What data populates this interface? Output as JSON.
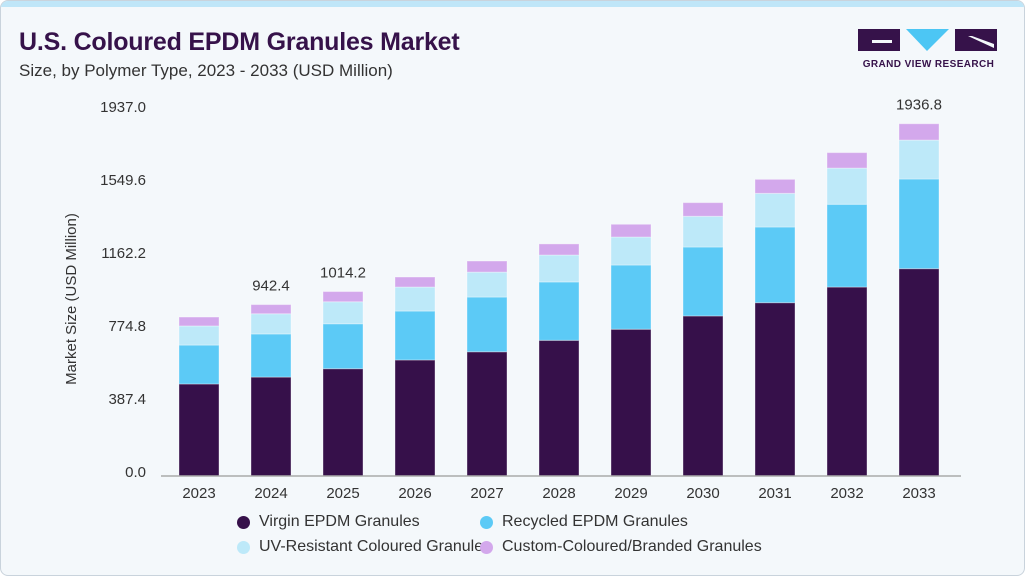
{
  "header": {
    "title": "U.S. Coloured EPDM Granules Market",
    "subtitle": "Size, by Polymer Type, 2023 - 2033 (USD Million)"
  },
  "logo": {
    "text": "GRAND VIEW RESEARCH"
  },
  "chart_data": {
    "type": "bar",
    "stacked": true,
    "ylabel": "Market Size (USD Million)",
    "xlabel": "",
    "ylim": [
      0,
      1937
    ],
    "yticks": [
      "0.0",
      "387.4",
      "774.8",
      "1162.2",
      "1549.6",
      "1937.0"
    ],
    "ytick_values": [
      0,
      387.4,
      774.8,
      1162.2,
      1549.6,
      1937.0
    ],
    "categories": [
      "2023",
      "2024",
      "2025",
      "2026",
      "2027",
      "2028",
      "2029",
      "2030",
      "2031",
      "2032",
      "2033"
    ],
    "series": [
      {
        "name": "Virgin EPDM Granules",
        "color": "#36104a",
        "values": [
          506,
          544,
          590,
          638,
          683,
          746,
          807,
          880,
          953,
          1039,
          1140
        ]
      },
      {
        "name": "Recycled EPDM Granules",
        "color": "#5ccaf6",
        "values": [
          214,
          237,
          247,
          269,
          301,
          321,
          353,
          379,
          416,
          455,
          493
        ]
      },
      {
        "name": "UV-Resistant Coloured Granules",
        "color": "#bde9f9",
        "values": [
          105,
          111,
          121,
          132,
          137,
          148,
          154,
          169,
          185,
          199,
          214
        ]
      },
      {
        "name": "Custom-Coloured/Branded Granules",
        "color": "#d3a8ec",
        "values": [
          49,
          50.4,
          56.2,
          55,
          61,
          61,
          70,
          75,
          77,
          85,
          89.8
        ]
      }
    ],
    "data_labels": [
      {
        "category": "2024",
        "text": "942.4"
      },
      {
        "category": "2025",
        "text": "1014.2"
      },
      {
        "category": "2033",
        "text": "1936.8"
      }
    ],
    "legend_position": "bottom",
    "grid": false
  },
  "legend_order": [
    0,
    2,
    1,
    3
  ]
}
